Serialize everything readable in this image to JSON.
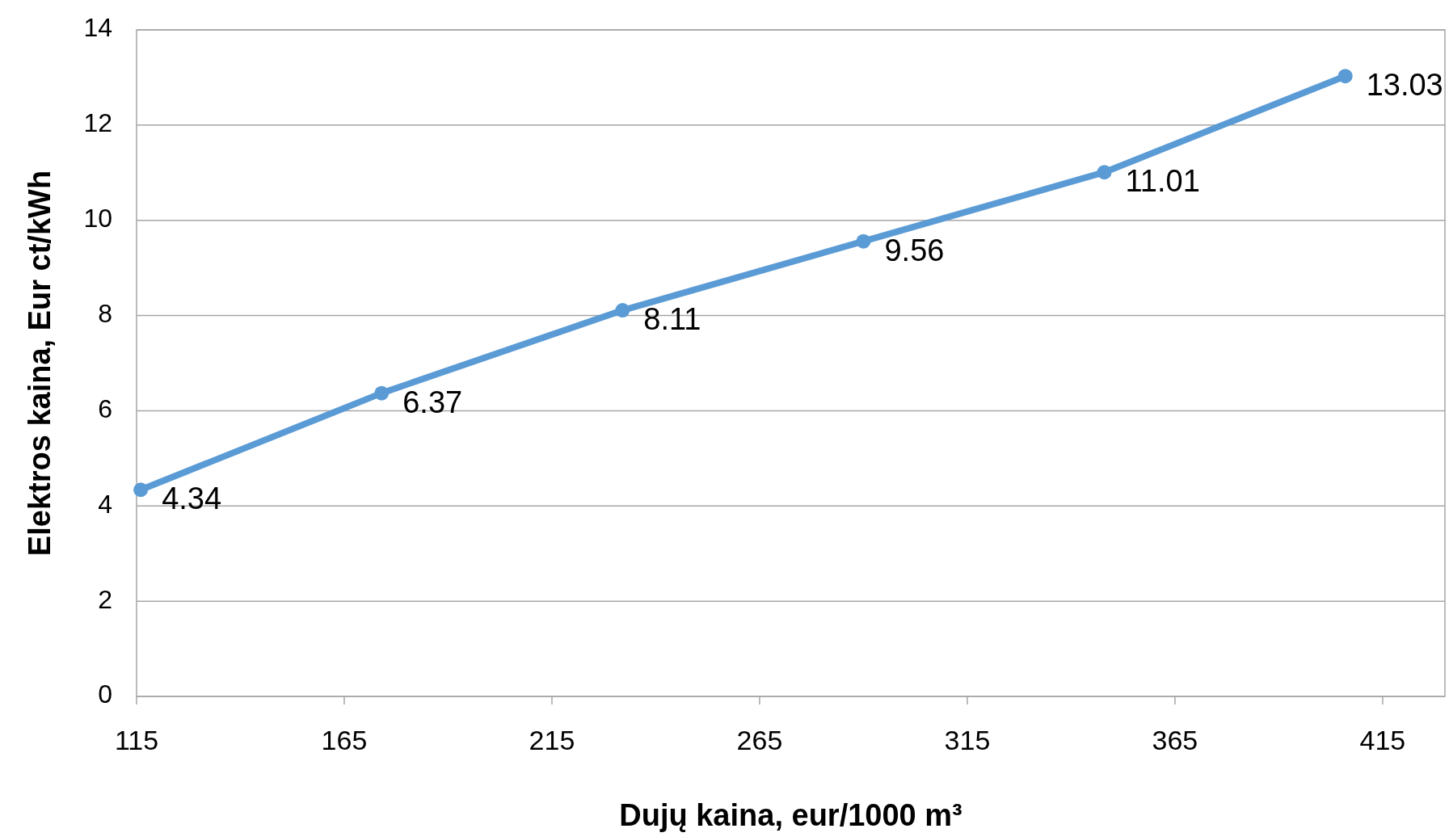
{
  "chart_data": {
    "type": "line",
    "xlabel": "Dujų kaina, eur/1000 m³",
    "ylabel": "Elektros kaina, Eur ct/kWh",
    "x": [
      116,
      174,
      232,
      290,
      348,
      406
    ],
    "series": [
      {
        "color": "#5b9bd5",
        "values": [
          4.34,
          6.37,
          8.11,
          9.56,
          11.01,
          13.03
        ]
      }
    ],
    "xlim": [
      115,
      430
    ],
    "xticks": [
      115,
      165,
      215,
      265,
      315,
      365,
      415
    ],
    "ylim": [
      0,
      14
    ],
    "yticks": [
      0,
      2,
      4,
      6,
      8,
      10,
      12,
      14
    ],
    "grid": "y",
    "marker": "circle",
    "line_style": "solid",
    "data_labels": true
  }
}
